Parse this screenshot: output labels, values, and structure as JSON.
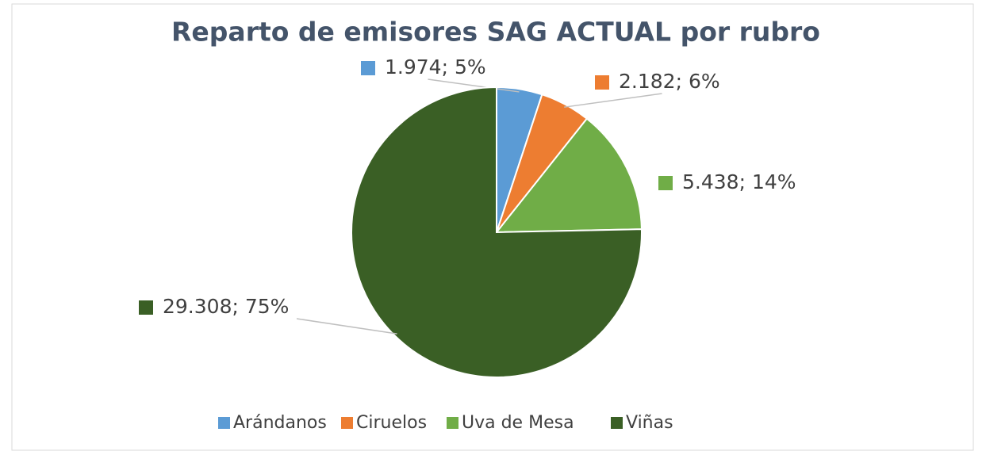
{
  "chart_data": {
    "type": "pie",
    "title": "Reparto de emisores SAG ACTUAL por rubro",
    "categories": [
      "Arándanos",
      "Ciruelos",
      "Uva de Mesa",
      "Viñas"
    ],
    "values": [
      1974,
      2182,
      5438,
      29308
    ],
    "value_labels": [
      "1.974; 5%",
      "2.182; 6%",
      "5.438; 14%",
      "29.308; 75%"
    ],
    "colors": [
      "#5b9bd5",
      "#ed7d31",
      "#70ad47",
      "#3a5f25"
    ],
    "legend": "bottom"
  }
}
